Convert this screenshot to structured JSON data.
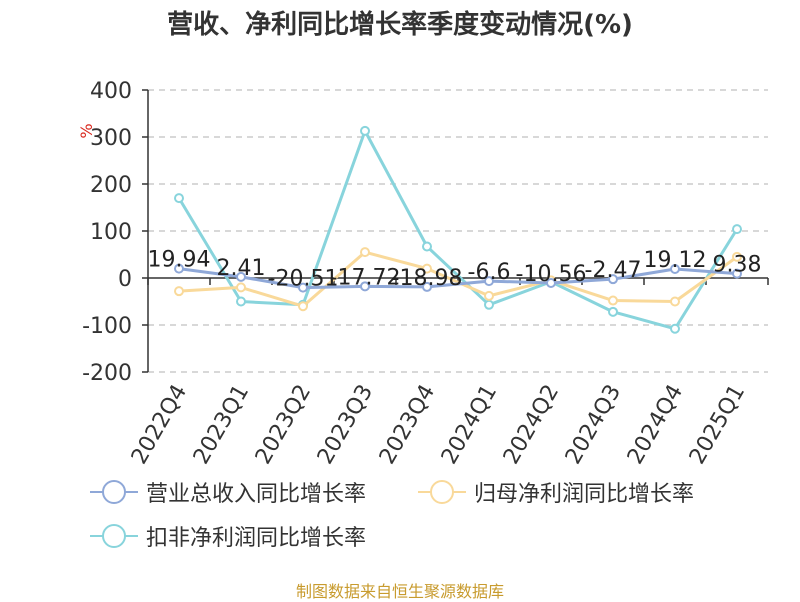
{
  "chart_data": {
    "type": "line",
    "title": "营收、净利同比增长率季度变动情况(%)",
    "ylabel": "%",
    "ylim": [
      -200,
      400
    ],
    "yticks": [
      -200,
      -100,
      0,
      100,
      200,
      300,
      400
    ],
    "categories": [
      "2022Q4",
      "2023Q1",
      "2023Q2",
      "2023Q3",
      "2023Q4",
      "2024Q1",
      "2024Q2",
      "2024Q3",
      "2024Q4",
      "2025Q1"
    ],
    "grid": true,
    "legend_position": "bottom",
    "series": [
      {
        "name": "营业总收入同比增长率",
        "color": "#8fa8d8",
        "values": [
          19.94,
          2.41,
          -20.51,
          -17.72,
          -18.98,
          -6.6,
          -10.56,
          -2.47,
          19.12,
          9.38
        ],
        "labels": [
          "19.94",
          "2.41",
          "-20.51",
          "-17.72",
          "-18.98",
          "-6.6",
          "-10.56",
          "-2.47",
          "19.12",
          "9.38"
        ]
      },
      {
        "name": "归母净利润同比增长率",
        "color": "#f9d99a",
        "values": [
          -28,
          -20,
          -60,
          55,
          20,
          -38,
          -5,
          -48,
          -50,
          45
        ]
      },
      {
        "name": "扣非净利润同比增长率",
        "color": "#88d4dc",
        "values": [
          170,
          -50,
          -57,
          313,
          67,
          -57,
          -8,
          -72,
          -108,
          104
        ]
      }
    ]
  },
  "source_note": "制图数据来自恒生聚源数据库"
}
